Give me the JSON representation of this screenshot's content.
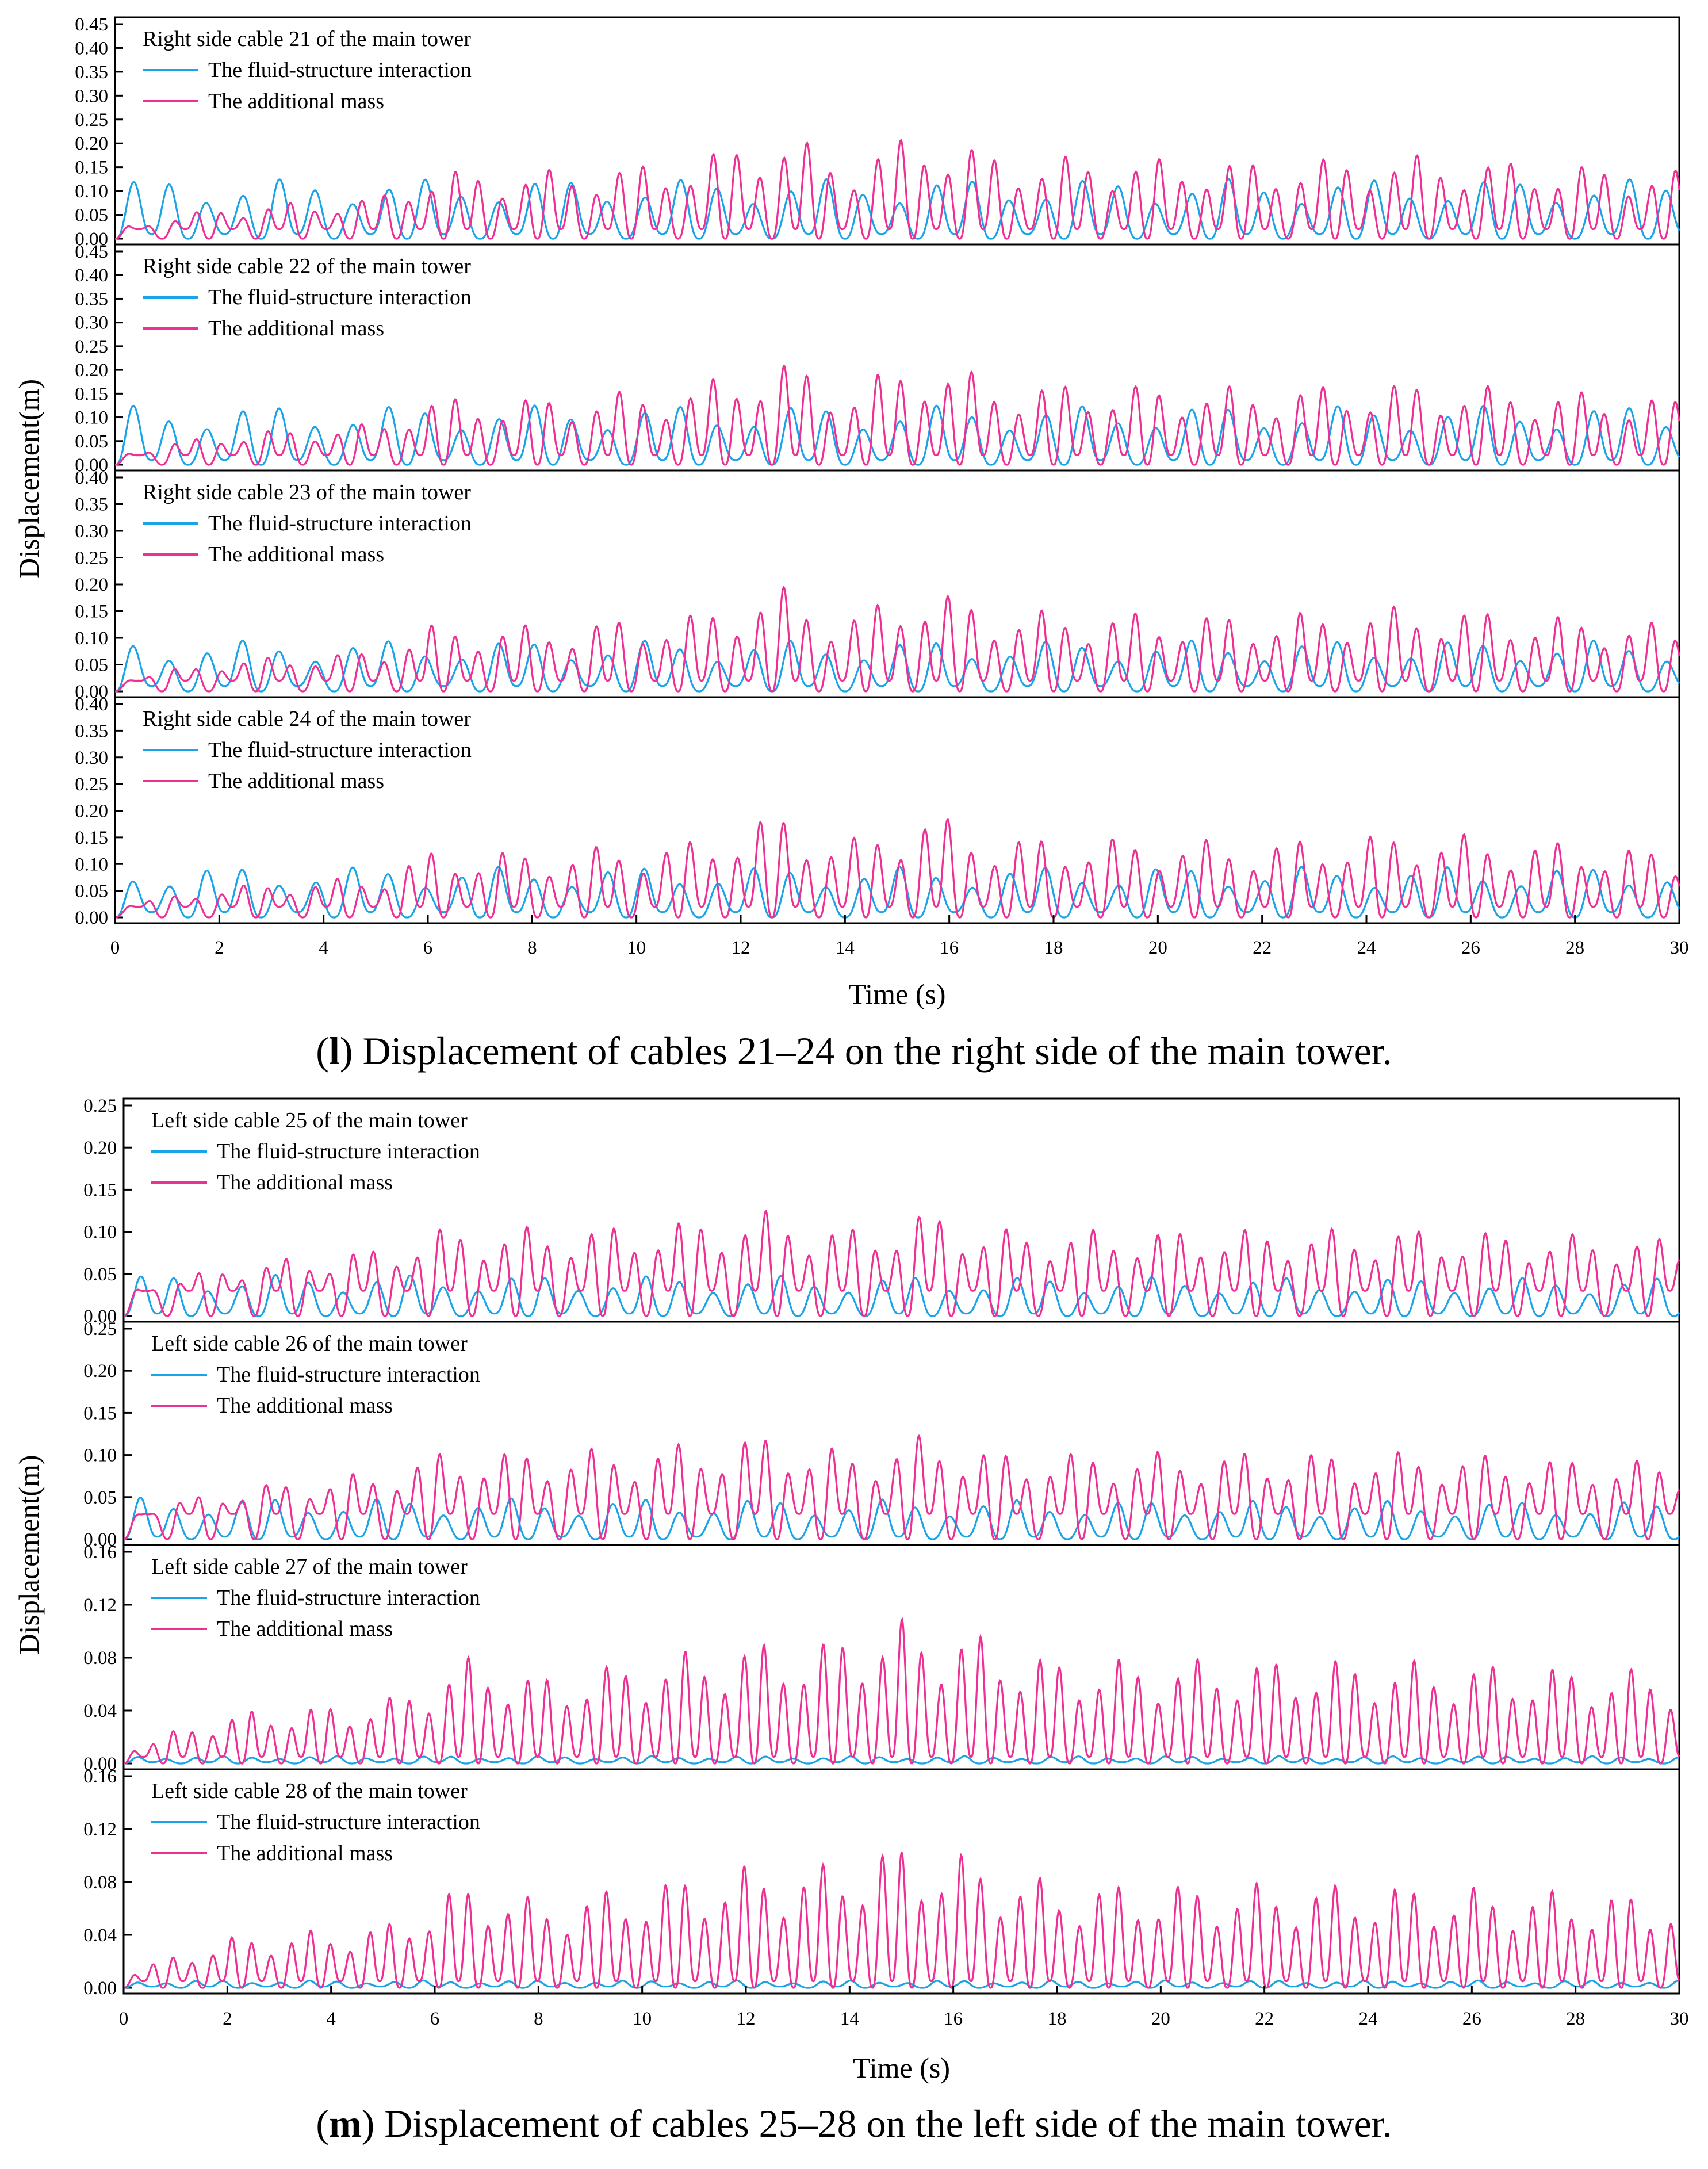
{
  "colors": {
    "fsi": "#1aa3e8",
    "additional_mass": "#ee2f93",
    "axis": "#000000"
  },
  "chart_data": [
    {
      "type": "line",
      "caption": {
        "letter": "l",
        "open": "(",
        "close": ")",
        "text": " Displacement of cables 21–24 on the right side of the main tower."
      },
      "xlabel": "Time (s)",
      "ylabel": "Displacement(m)",
      "xlim": [
        0,
        30
      ],
      "xticks": [
        "0",
        "2",
        "4",
        "6",
        "8",
        "10",
        "12",
        "14",
        "16",
        "18",
        "20",
        "22",
        "24",
        "26",
        "28",
        "30"
      ],
      "panels": [
        {
          "title": "Right side cable 21 of the main tower",
          "ylim": [
            0,
            0.45
          ],
          "yticks": [
            "0.00",
            "0.05",
            "0.10",
            "0.15",
            "0.20",
            "0.25",
            "0.30",
            "0.35",
            "0.40",
            "0.45"
          ],
          "series": [
            {
              "name": "The fluid-structure interaction",
              "color": "#1aa3e8",
              "base": 0.01,
              "amp": 0.12,
              "period": 0.7,
              "envelope": [
                [
                  0,
                  1
                ],
                [
                  30,
                  1
                ]
              ]
            },
            {
              "name": "The additional mass",
              "color": "#ee2f93",
              "base": 0.02,
              "amp": 0.22,
              "period": 0.45,
              "envelope": [
                [
                  0,
                  0.05
                ],
                [
                  2,
                  0.25
                ],
                [
                  5,
                  0.35
                ],
                [
                  6,
                  0.6
                ],
                [
                  8,
                  0.6
                ],
                [
                  11,
                  0.7
                ],
                [
                  12.7,
                  1.0
                ],
                [
                  14,
                  0.7
                ],
                [
                  15.5,
                  1.0
                ],
                [
                  17,
                  0.75
                ],
                [
                  22,
                  0.7
                ],
                [
                  25,
                  0.75
                ],
                [
                  30,
                  0.6
                ]
              ]
            }
          ]
        },
        {
          "title": "Right side cable 22 of the main tower",
          "ylim": [
            0,
            0.45
          ],
          "yticks": [
            "0.00",
            "0.05",
            "0.10",
            "0.15",
            "0.20",
            "0.25",
            "0.30",
            "0.35",
            "0.40",
            "0.45"
          ],
          "series": [
            {
              "name": "The fluid-structure interaction",
              "color": "#1aa3e8",
              "base": 0.01,
              "amp": 0.12,
              "period": 0.7,
              "envelope": [
                [
                  0,
                  1
                ],
                [
                  30,
                  1
                ]
              ]
            },
            {
              "name": "The additional mass",
              "color": "#ee2f93",
              "base": 0.02,
              "amp": 0.22,
              "period": 0.45,
              "envelope": [
                [
                  0,
                  0.05
                ],
                [
                  2,
                  0.25
                ],
                [
                  5,
                  0.35
                ],
                [
                  6,
                  0.6
                ],
                [
                  8,
                  0.6
                ],
                [
                  11,
                  0.7
                ],
                [
                  12.7,
                  1.0
                ],
                [
                  14,
                  0.7
                ],
                [
                  15.5,
                  1.0
                ],
                [
                  17,
                  0.75
                ],
                [
                  22,
                  0.7
                ],
                [
                  25,
                  0.75
                ],
                [
                  30,
                  0.6
                ]
              ]
            }
          ]
        },
        {
          "title": "Right side cable 23 of the main tower",
          "ylim": [
            0,
            0.4
          ],
          "yticks": [
            "0.00",
            "0.05",
            "0.10",
            "0.15",
            "0.20",
            "0.25",
            "0.30",
            "0.35",
            "0.40"
          ],
          "series": [
            {
              "name": "The fluid-structure interaction",
              "color": "#1aa3e8",
              "base": 0.01,
              "amp": 0.09,
              "period": 0.7,
              "envelope": [
                [
                  0,
                  1
                ],
                [
                  30,
                  1
                ]
              ]
            },
            {
              "name": "The additional mass",
              "color": "#ee2f93",
              "base": 0.02,
              "amp": 0.19,
              "period": 0.45,
              "envelope": [
                [
                  0,
                  0.05
                ],
                [
                  2,
                  0.25
                ],
                [
                  5,
                  0.35
                ],
                [
                  6,
                  0.6
                ],
                [
                  8,
                  0.6
                ],
                [
                  11,
                  0.7
                ],
                [
                  12.7,
                  1.0
                ],
                [
                  14,
                  0.7
                ],
                [
                  15.5,
                  1.0
                ],
                [
                  17,
                  0.75
                ],
                [
                  22,
                  0.7
                ],
                [
                  25,
                  0.8
                ],
                [
                  30,
                  0.6
                ]
              ]
            }
          ]
        },
        {
          "title": "Right side cable 24 of the main tower",
          "ylim": [
            0,
            0.4
          ],
          "yticks": [
            "0.00",
            "0.05",
            "0.10",
            "0.15",
            "0.20",
            "0.25",
            "0.30",
            "0.35",
            "0.40"
          ],
          "series": [
            {
              "name": "The fluid-structure interaction",
              "color": "#1aa3e8",
              "base": 0.01,
              "amp": 0.09,
              "period": 0.7,
              "envelope": [
                [
                  0,
                  1
                ],
                [
                  30,
                  1
                ]
              ]
            },
            {
              "name": "The additional mass",
              "color": "#ee2f93",
              "base": 0.02,
              "amp": 0.19,
              "period": 0.45,
              "envelope": [
                [
                  0,
                  0.05
                ],
                [
                  2,
                  0.25
                ],
                [
                  5,
                  0.35
                ],
                [
                  6,
                  0.6
                ],
                [
                  8,
                  0.6
                ],
                [
                  11,
                  0.7
                ],
                [
                  12.7,
                  1.0
                ],
                [
                  14,
                  0.7
                ],
                [
                  15.5,
                  1.0
                ],
                [
                  17,
                  0.75
                ],
                [
                  22,
                  0.7
                ],
                [
                  25,
                  0.8
                ],
                [
                  30,
                  0.6
                ]
              ]
            }
          ]
        }
      ]
    },
    {
      "type": "line",
      "caption": {
        "letter": "m",
        "open": "(",
        "close": ")",
        "text": " Displacement of cables 25–28 on the left side of the main tower."
      },
      "xlabel": "Time (s)",
      "ylabel": "Displacement(m)",
      "xlim": [
        0,
        30
      ],
      "xticks": [
        "0",
        "2",
        "4",
        "6",
        "8",
        "10",
        "12",
        "14",
        "16",
        "18",
        "20",
        "22",
        "24",
        "26",
        "28",
        "30"
      ],
      "panels": [
        {
          "title": "Left side cable 25 of the main tower",
          "ylim": [
            0,
            0.25
          ],
          "yticks": [
            "0.00",
            "0.05",
            "0.10",
            "0.15",
            "0.20",
            "0.25"
          ],
          "series": [
            {
              "name": "The fluid-structure interaction",
              "color": "#1aa3e8",
              "base": 0.003,
              "amp": 0.048,
              "period": 0.65,
              "envelope": [
                [
                  0,
                  1
                ],
                [
                  30,
                  0.9
                ]
              ]
            },
            {
              "name": "The additional mass",
              "color": "#ee2f93",
              "base": 0.03,
              "amp": 0.11,
              "period": 0.42,
              "envelope": [
                [
                  0,
                  0.1
                ],
                [
                  2,
                  0.4
                ],
                [
                  5,
                  0.6
                ],
                [
                  6,
                  0.8
                ],
                [
                  10,
                  0.85
                ],
                [
                  12.5,
                  1.0
                ],
                [
                  14,
                  0.8
                ],
                [
                  15.5,
                  1.0
                ],
                [
                  17,
                  0.8
                ],
                [
                  25,
                  0.8
                ],
                [
                  30,
                  0.7
                ]
              ]
            }
          ]
        },
        {
          "title": "Left side cable 26 of the main tower",
          "ylim": [
            0,
            0.25
          ],
          "yticks": [
            "0.00",
            "0.05",
            "0.10",
            "0.15",
            "0.20",
            "0.25"
          ],
          "series": [
            {
              "name": "The fluid-structure interaction",
              "color": "#1aa3e8",
              "base": 0.003,
              "amp": 0.048,
              "period": 0.65,
              "envelope": [
                [
                  0,
                  1
                ],
                [
                  30,
                  0.9
                ]
              ]
            },
            {
              "name": "The additional mass",
              "color": "#ee2f93",
              "base": 0.03,
              "amp": 0.11,
              "period": 0.42,
              "envelope": [
                [
                  0,
                  0.1
                ],
                [
                  2,
                  0.4
                ],
                [
                  5,
                  0.6
                ],
                [
                  6,
                  0.8
                ],
                [
                  10,
                  0.85
                ],
                [
                  12.5,
                  1.0
                ],
                [
                  14,
                  0.8
                ],
                [
                  15.5,
                  1.0
                ],
                [
                  17,
                  0.8
                ],
                [
                  25,
                  0.8
                ],
                [
                  30,
                  0.7
                ]
              ]
            }
          ]
        },
        {
          "title": "Left side cable 27 of the main tower",
          "ylim": [
            0,
            0.16
          ],
          "yticks": [
            "0.00",
            "0.04",
            "0.08",
            "0.12",
            "0.16"
          ],
          "series": [
            {
              "name": "The fluid-structure interaction",
              "color": "#1aa3e8",
              "base": 0.001,
              "amp": 0.005,
              "period": 0.55,
              "envelope": [
                [
                  0,
                  1
                ],
                [
                  30,
                  1
                ]
              ]
            },
            {
              "name": "The additional mass",
              "color": "#ee2f93",
              "base": 0.005,
              "amp": 0.09,
              "period": 0.38,
              "envelope": [
                [
                  0,
                  0.1
                ],
                [
                  2,
                  0.4
                ],
                [
                  5,
                  0.5
                ],
                [
                  6.8,
                  0.9
                ],
                [
                  8,
                  0.7
                ],
                [
                  12,
                  1.0
                ],
                [
                  13.4,
                  1.0
                ],
                [
                  14.8,
                  1.2
                ],
                [
                  16.2,
                  1.1
                ],
                [
                  18,
                  0.85
                ],
                [
                  24,
                  0.85
                ],
                [
                  30,
                  0.75
                ]
              ]
            }
          ]
        },
        {
          "title": "Left side cable 28 of the main tower",
          "ylim": [
            0,
            0.16
          ],
          "yticks": [
            "0.00",
            "0.04",
            "0.08",
            "0.12",
            "0.16"
          ],
          "series": [
            {
              "name": "The fluid-structure interaction",
              "color": "#1aa3e8",
              "base": 0.001,
              "amp": 0.005,
              "period": 0.55,
              "envelope": [
                [
                  0,
                  1
                ],
                [
                  30,
                  1
                ]
              ]
            },
            {
              "name": "The additional mass",
              "color": "#ee2f93",
              "base": 0.005,
              "amp": 0.09,
              "period": 0.38,
              "envelope": [
                [
                  0,
                  0.1
                ],
                [
                  2,
                  0.4
                ],
                [
                  5,
                  0.5
                ],
                [
                  6.8,
                  0.9
                ],
                [
                  8,
                  0.7
                ],
                [
                  12,
                  1.0
                ],
                [
                  13.4,
                  1.0
                ],
                [
                  14.8,
                  1.2
                ],
                [
                  16.2,
                  1.1
                ],
                [
                  18,
                  0.85
                ],
                [
                  24,
                  0.85
                ],
                [
                  30,
                  0.75
                ]
              ]
            }
          ]
        }
      ]
    }
  ]
}
